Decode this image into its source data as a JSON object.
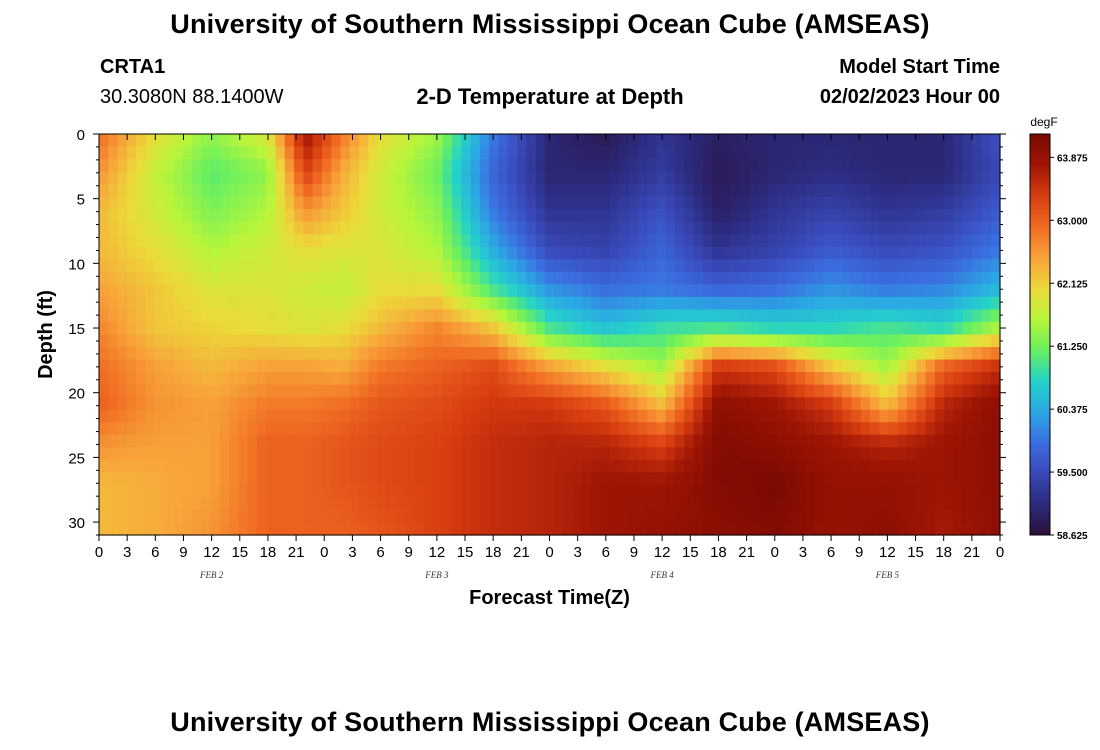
{
  "header": {
    "title": "University of Southern Mississippi Ocean Cube (AMSEAS)",
    "station": "CRTA1",
    "coords": "30.3080N  88.1400W",
    "subtitle": "2-D Temperature at Depth",
    "model_start_label": "Model Start Time",
    "model_start_value": "02/02/2023 Hour 00"
  },
  "footer": {
    "title": "University of Southern Mississippi Ocean Cube (AMSEAS)"
  },
  "chart_data": {
    "type": "heatmap",
    "title": "2-D Temperature at Depth",
    "xlabel": "Forecast Time(Z)",
    "ylabel": "Depth (ft)",
    "x_range_hours": [
      0,
      96
    ],
    "y_range_ft": [
      0,
      31
    ],
    "x_tick_labels": [
      "0",
      "3",
      "6",
      "9",
      "12",
      "15",
      "18",
      "21",
      "0",
      "3",
      "6",
      "9",
      "12",
      "15",
      "18",
      "21",
      "0",
      "3",
      "6",
      "9",
      "12",
      "15",
      "18",
      "21",
      "0",
      "3",
      "6",
      "9",
      "12",
      "15",
      "18",
      "21",
      "0"
    ],
    "y_ticks": [
      0,
      5,
      10,
      15,
      20,
      25,
      30
    ],
    "date_labels": [
      {
        "label": "FEB 2",
        "hour": 12
      },
      {
        "label": "FEB 3",
        "hour": 36
      },
      {
        "label": "FEB 4",
        "hour": 60
      },
      {
        "label": "FEB 5",
        "hour": 84
      }
    ],
    "colorbar": {
      "unit": "degF",
      "min": 58.625,
      "max": 64.2,
      "tick_labels": [
        "63.875",
        "63.000",
        "62.125",
        "61.250",
        "60.375",
        "59.500",
        "58.625"
      ],
      "colors": [
        "#2d0f3a",
        "#2b2a7c",
        "#3948b8",
        "#3b6ee0",
        "#2ba8e4",
        "#25d3c8",
        "#6af05f",
        "#b8f53a",
        "#ecd93a",
        "#f8a23a",
        "#f06a22",
        "#d63c10",
        "#a01505",
        "#7a0a02"
      ]
    },
    "depth_levels_ft": [
      0,
      3,
      6,
      9,
      12,
      15,
      18,
      21,
      24,
      27,
      31
    ],
    "time_hours": [
      0,
      6,
      12,
      18,
      22,
      26,
      30,
      36,
      42,
      48,
      54,
      60,
      66,
      72,
      78,
      84,
      90,
      96
    ],
    "values_degF": [
      [
        62.9,
        62.0,
        61.4,
        61.9,
        63.8,
        62.8,
        62.0,
        61.5,
        60.0,
        59.0,
        58.8,
        59.2,
        58.9,
        59.0,
        59.0,
        59.0,
        59.0,
        59.6
      ],
      [
        62.6,
        61.7,
        61.1,
        61.4,
        63.3,
        62.4,
        61.8,
        61.2,
        59.8,
        59.0,
        59.0,
        59.3,
        58.8,
        59.0,
        59.1,
        59.0,
        59.0,
        59.5
      ],
      [
        62.3,
        61.8,
        61.3,
        61.6,
        62.6,
        62.2,
        61.8,
        61.4,
        60.0,
        59.2,
        59.2,
        59.6,
        58.9,
        59.2,
        59.4,
        59.2,
        59.3,
        59.7
      ],
      [
        62.3,
        62.0,
        61.6,
        61.8,
        62.0,
        61.9,
        61.9,
        61.6,
        60.4,
        59.5,
        59.4,
        59.8,
        59.2,
        59.4,
        59.7,
        59.5,
        59.6,
        60.0
      ],
      [
        62.5,
        62.2,
        61.9,
        61.9,
        61.8,
        61.7,
        62.0,
        62.0,
        61.0,
        60.2,
        59.9,
        60.0,
        59.8,
        59.9,
        60.2,
        60.0,
        60.1,
        60.5
      ],
      [
        62.7,
        62.2,
        62.1,
        62.0,
        61.9,
        62.0,
        62.3,
        62.7,
        62.2,
        61.0,
        60.6,
        60.9,
        61.0,
        60.8,
        60.8,
        61.0,
        60.8,
        61.6
      ],
      [
        62.9,
        62.5,
        62.3,
        62.5,
        62.5,
        62.4,
        62.8,
        63.0,
        63.2,
        62.5,
        62.0,
        61.5,
        63.4,
        63.2,
        62.2,
        61.5,
        63.0,
        63.5
      ],
      [
        63.0,
        62.6,
        62.5,
        62.8,
        62.8,
        62.9,
        63.1,
        63.2,
        63.4,
        63.4,
        63.1,
        62.3,
        64.0,
        63.8,
        63.4,
        62.3,
        63.6,
        64.0
      ],
      [
        62.6,
        62.5,
        62.5,
        63.0,
        63.0,
        63.1,
        63.2,
        63.3,
        63.5,
        63.6,
        63.6,
        63.3,
        64.1,
        64.0,
        63.8,
        63.6,
        63.8,
        64.0
      ],
      [
        62.3,
        62.4,
        62.5,
        63.0,
        63.0,
        63.1,
        63.2,
        63.3,
        63.5,
        63.6,
        63.8,
        63.8,
        64.1,
        64.2,
        63.9,
        63.9,
        63.8,
        64.0
      ],
      [
        62.3,
        62.4,
        62.6,
        63.0,
        63.0,
        63.0,
        63.1,
        63.3,
        63.5,
        63.6,
        63.8,
        63.9,
        64.0,
        64.1,
        63.9,
        64.0,
        63.7,
        64.0
      ]
    ]
  }
}
